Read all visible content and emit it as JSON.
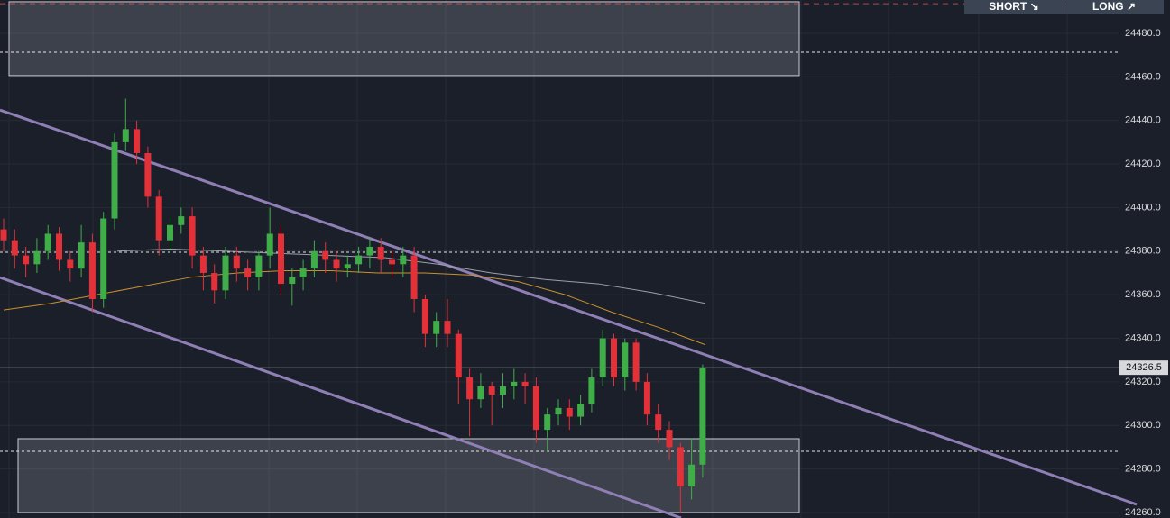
{
  "chart_data": {
    "type": "candlestick",
    "buttons": [
      "SHORT ↘",
      "LONG ↗"
    ],
    "open": [
      24390,
      24385,
      24378,
      24374,
      24380,
      24388,
      24376,
      24372,
      24384,
      24358,
      24395,
      24430,
      24436,
      24425,
      24405,
      24385,
      24392,
      24396,
      24378,
      24370,
      24362,
      24378,
      24372,
      24368,
      24378,
      24388,
      24365,
      24368,
      24372,
      24380,
      24376,
      24372,
      24374,
      24378,
      24382,
      24376,
      24374,
      24378,
      24358,
      24342,
      24348,
      24342,
      24322,
      24312,
      24318,
      24314,
      24318,
      24320,
      24318,
      24298,
      24305,
      24308,
      24304,
      24310,
      24322,
      24340,
      24322,
      24338,
      24320,
      24305,
      24298,
      24290,
      24272,
      24282
    ],
    "high": [
      24395,
      24390,
      24382,
      24386,
      24392,
      24391,
      24380,
      24392,
      24388,
      24398,
      24434,
      24450,
      24440,
      24428,
      24408,
      24396,
      24400,
      24400,
      24382,
      24374,
      24382,
      24382,
      24376,
      24380,
      24400,
      24392,
      24372,
      24376,
      24385,
      24384,
      24380,
      24378,
      24382,
      24386,
      24386,
      24380,
      24382,
      24382,
      24360,
      24352,
      24358,
      24344,
      24326,
      24324,
      24320,
      24324,
      24326,
      24324,
      24322,
      24308,
      24312,
      24312,
      24314,
      24326,
      24344,
      24342,
      24340,
      24340,
      24324,
      24310,
      24302,
      24292,
      24294,
      24328
    ],
    "low": [
      24380,
      24372,
      24368,
      24370,
      24376,
      24371,
      24366,
      24368,
      24352,
      24354,
      24390,
      24426,
      24420,
      24400,
      24378,
      24380,
      24388,
      24372,
      24362,
      24356,
      24358,
      24366,
      24362,
      24362,
      24372,
      24360,
      24355,
      24362,
      24368,
      24370,
      24366,
      24368,
      24370,
      24372,
      24370,
      24368,
      24368,
      24352,
      24336,
      24336,
      24336,
      24310,
      24295,
      24308,
      24300,
      24308,
      24312,
      24310,
      24292,
      24288,
      24300,
      24298,
      24300,
      24306,
      24318,
      24318,
      24316,
      24316,
      24300,
      24292,
      24284,
      24260,
      24266,
      24276
    ],
    "close": [
      24385,
      24378,
      24374,
      24380,
      24388,
      24376,
      24372,
      24384,
      24358,
      24395,
      24430,
      24436,
      24425,
      24405,
      24385,
      24392,
      24396,
      24378,
      24370,
      24362,
      24378,
      24372,
      24368,
      24378,
      24388,
      24365,
      24368,
      24372,
      24380,
      24376,
      24372,
      24374,
      24378,
      24382,
      24376,
      24374,
      24378,
      24358,
      24342,
      24348,
      24342,
      24322,
      24312,
      24318,
      24314,
      24318,
      24320,
      24318,
      24298,
      24305,
      24308,
      24304,
      24310,
      24322,
      24340,
      24322,
      24338,
      24320,
      24305,
      24298,
      24290,
      24272,
      24282,
      24326.5
    ],
    "up_color": "#3fae49",
    "down_color": "#e3313a",
    "moving_averages": [
      {
        "color": "#c8902e",
        "values": [
          24353,
          24356,
          24360,
          24364,
          24368,
          24370,
          24371,
          24371,
          24370,
          24370,
          24369,
          24366,
          24360,
          24352,
          24345,
          24337
        ]
      },
      {
        "color": "#9aa0a8",
        "values": [
          24380,
          24381,
          24380,
          24379,
          24378,
          24377,
          24374,
          24370,
          24367,
          24365,
          24361,
          24356
        ]
      }
    ],
    "trendlines": [
      {
        "start": 24444.8,
        "end": 24263.7
      },
      {
        "start": 24367.9,
        "end": 24257.5
      }
    ],
    "zones": [
      {
        "top": 24494.5,
        "bottom": 24460.6
      },
      {
        "top": 24293.9,
        "bottom": 24260
      }
    ],
    "levels": [
      24471.3,
      24379.5,
      24288.1
    ],
    "alert_level": 24493.6,
    "current_price": 24326.5,
    "ylim": [
      24257.5,
      24495.3
    ],
    "yticks": [
      {
        "value": 24260,
        "label": "24260.0"
      },
      {
        "value": 24280,
        "label": "24280.0"
      },
      {
        "value": 24300,
        "label": "24300.0"
      },
      {
        "value": 24320,
        "label": "24320.0"
      },
      {
        "value": 24340,
        "label": "24340.0"
      },
      {
        "value": 24360,
        "label": "24360.0"
      },
      {
        "value": 24380,
        "label": "24380.0"
      },
      {
        "value": 24400,
        "label": "24400.0"
      },
      {
        "value": 24420,
        "label": "24420.0"
      },
      {
        "value": 24440,
        "label": "24440.0"
      },
      {
        "value": 24460,
        "label": "24460.0"
      },
      {
        "value": 24480,
        "label": "24480.0"
      }
    ],
    "grid": true
  }
}
